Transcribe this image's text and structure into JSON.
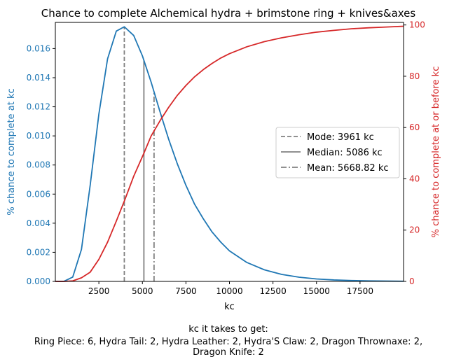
{
  "chart_data": {
    "type": "line",
    "title": "Chance to complete Alchemical hydra + brimstone ring + knives&axes",
    "xlabel": "kc",
    "ylabel_left": "% chance to complete at kc",
    "ylabel_right": "% chance to complete at or before kc",
    "xlim": [
      0,
      20000
    ],
    "ylim_left": [
      0,
      0.0178
    ],
    "ylim_right": [
      0,
      101
    ],
    "x_ticks": [
      2500,
      5000,
      7500,
      10000,
      12500,
      15000,
      17500
    ],
    "y_ticks_left": [
      0.0,
      0.002,
      0.004,
      0.006,
      0.008,
      0.01,
      0.012,
      0.014,
      0.016
    ],
    "y_ticks_right": [
      0,
      20,
      40,
      60,
      80,
      100
    ],
    "colors": {
      "left_axis": "#1f77b4",
      "right_axis": "#d62728",
      "markers": "#808080"
    },
    "series": [
      {
        "axis": "left",
        "x": [
          0,
          500,
          1000,
          1500,
          2000,
          2500,
          3000,
          3500,
          3961,
          4500,
          5000,
          5500,
          6000,
          6500,
          7000,
          7500,
          8000,
          8500,
          9000,
          9500,
          10000,
          11000,
          12000,
          13000,
          14000,
          15000,
          16000,
          17000,
          18000,
          19000,
          20000
        ],
        "values": [
          0,
          1e-05,
          0.0003,
          0.0022,
          0.0066,
          0.0115,
          0.0153,
          0.0172,
          0.0175,
          0.0169,
          0.0155,
          0.0137,
          0.0117,
          0.0098,
          0.0081,
          0.0066,
          0.0053,
          0.0043,
          0.0034,
          0.0027,
          0.0021,
          0.0013,
          0.0008,
          0.00048,
          0.00029,
          0.00017,
          0.0001,
          6e-05,
          3.5e-05,
          2e-05,
          1.2e-05
        ]
      },
      {
        "axis": "right",
        "x": [
          0,
          500,
          1000,
          1500,
          2000,
          2500,
          3000,
          3500,
          4000,
          4500,
          5086,
          5500,
          6000,
          6500,
          7000,
          7500,
          8000,
          8500,
          9000,
          9500,
          10000,
          11000,
          12000,
          13000,
          14000,
          15000,
          16000,
          17000,
          18000,
          19000,
          20000
        ],
        "values": [
          0,
          0.01,
          0.2,
          1.4,
          3.6,
          8.6,
          15.3,
          23.5,
          32.0,
          41.0,
          50.0,
          56.7,
          62.5,
          67.8,
          72.5,
          76.4,
          79.8,
          82.6,
          85.0,
          87.1,
          88.8,
          91.5,
          93.5,
          95.0,
          96.2,
          97.2,
          97.9,
          98.5,
          98.9,
          99.2,
          99.5
        ]
      }
    ],
    "vlines": [
      {
        "name": "Mode: 3961 kc",
        "x": 3961,
        "style": "dashed"
      },
      {
        "name": "Median: 5086 kc",
        "x": 5086,
        "style": "solid"
      },
      {
        "name": "Mean: 5668.82 kc",
        "x": 5668.82,
        "style": "dashdot"
      }
    ],
    "legend": "center-right",
    "caption": [
      "kc it takes to get:",
      "Ring Piece: 6,  Hydra Tail: 2,  Hydra Leather: 2,  Hydra'S Claw: 2,  Dragon Thrownaxe: 2,",
      "Dragon Knife: 2"
    ]
  }
}
